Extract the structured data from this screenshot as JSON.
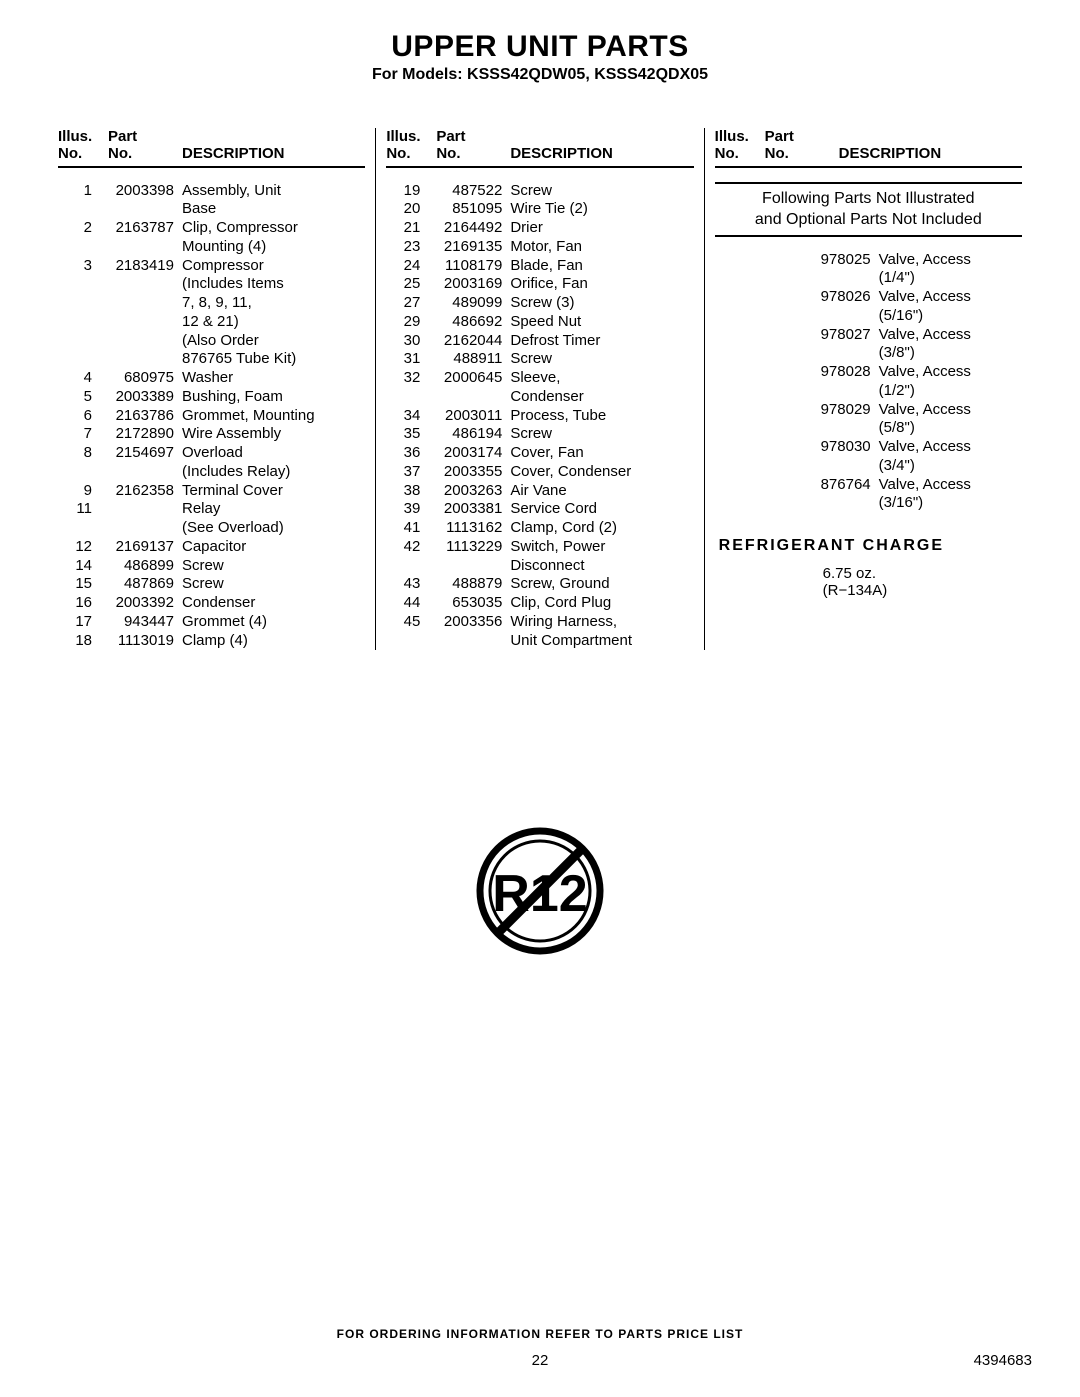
{
  "title": "UPPER UNIT PARTS",
  "subtitle": "For Models: KSSS42QDW05, KSSS42QDX05",
  "headers": {
    "illus_line1": "Illus.",
    "illus_line2": "No.",
    "part_line1": "Part",
    "part_line2": "No.",
    "desc": "DESCRIPTION"
  },
  "col1": [
    {
      "n": "1",
      "p": "2003398",
      "d": "Assembly, Unit"
    },
    {
      "n": "",
      "p": "",
      "d": "Base"
    },
    {
      "n": "2",
      "p": "2163787",
      "d": "Clip, Compressor"
    },
    {
      "n": "",
      "p": "",
      "d": "Mounting (4)"
    },
    {
      "n": "3",
      "p": "2183419",
      "d": "Compressor"
    },
    {
      "n": "",
      "p": "",
      "d": "(Includes Items"
    },
    {
      "n": "",
      "p": "",
      "d": "7, 8, 9, 11,"
    },
    {
      "n": "",
      "p": "",
      "d": "12 & 21)"
    },
    {
      "n": "",
      "p": "",
      "d": "(Also Order"
    },
    {
      "n": "",
      "p": "",
      "d": "876765 Tube Kit)"
    },
    {
      "n": "4",
      "p": "680975",
      "d": "Washer"
    },
    {
      "n": "5",
      "p": "2003389",
      "d": "Bushing, Foam"
    },
    {
      "n": "6",
      "p": "2163786",
      "d": "Grommet, Mounting"
    },
    {
      "n": "7",
      "p": "2172890",
      "d": "Wire Assembly"
    },
    {
      "n": "8",
      "p": "2154697",
      "d": "Overload"
    },
    {
      "n": "",
      "p": "",
      "d": "(Includes Relay)"
    },
    {
      "n": "9",
      "p": "2162358",
      "d": "Terminal Cover"
    },
    {
      "n": "11",
      "p": "",
      "d": "Relay"
    },
    {
      "n": "",
      "p": "",
      "d": "(See Overload)"
    },
    {
      "n": "12",
      "p": "2169137",
      "d": "Capacitor"
    },
    {
      "n": "14",
      "p": "486899",
      "d": "Screw"
    },
    {
      "n": "15",
      "p": "487869",
      "d": "Screw"
    },
    {
      "n": "16",
      "p": "2003392",
      "d": "Condenser"
    },
    {
      "n": "17",
      "p": "943447",
      "d": "Grommet (4)"
    },
    {
      "n": "18",
      "p": "1113019",
      "d": "Clamp (4)"
    }
  ],
  "col2": [
    {
      "n": "19",
      "p": "487522",
      "d": "Screw"
    },
    {
      "n": "20",
      "p": "851095",
      "d": "Wire Tie (2)"
    },
    {
      "n": "21",
      "p": "2164492",
      "d": "Drier"
    },
    {
      "n": "23",
      "p": "2169135",
      "d": "Motor, Fan"
    },
    {
      "n": "24",
      "p": "1108179",
      "d": "Blade, Fan"
    },
    {
      "n": "25",
      "p": "2003169",
      "d": "Orifice, Fan"
    },
    {
      "n": "27",
      "p": "489099",
      "d": "Screw (3)"
    },
    {
      "n": "29",
      "p": "486692",
      "d": "Speed Nut"
    },
    {
      "n": "30",
      "p": "2162044",
      "d": "Defrost Timer"
    },
    {
      "n": "31",
      "p": "488911",
      "d": "Screw"
    },
    {
      "n": "32",
      "p": "2000645",
      "d": "Sleeve,"
    },
    {
      "n": "",
      "p": "",
      "d": "Condenser"
    },
    {
      "n": "34",
      "p": "2003011",
      "d": "Process, Tube"
    },
    {
      "n": "35",
      "p": "486194",
      "d": "Screw"
    },
    {
      "n": "36",
      "p": "2003174",
      "d": "Cover, Fan"
    },
    {
      "n": "37",
      "p": "2003355",
      "d": "Cover, Condenser"
    },
    {
      "n": "38",
      "p": "2003263",
      "d": "Air Vane"
    },
    {
      "n": "39",
      "p": "2003381",
      "d": "Service Cord"
    },
    {
      "n": "41",
      "p": "1113162",
      "d": "Clamp, Cord (2)"
    },
    {
      "n": "42",
      "p": "1113229",
      "d": "Switch, Power"
    },
    {
      "n": "",
      "p": "",
      "d": "Disconnect"
    },
    {
      "n": "43",
      "p": "488879",
      "d": "Screw, Ground"
    },
    {
      "n": "44",
      "p": "653035",
      "d": "Clip, Cord Plug"
    },
    {
      "n": "45",
      "p": "2003356",
      "d": "Wiring Harness,"
    },
    {
      "n": "",
      "p": "",
      "d": "Unit Compartment"
    }
  ],
  "col3_header_line1": "Following Parts Not Illustrated",
  "col3_header_line2": "and Optional Parts Not Included",
  "col3": [
    {
      "n": "",
      "p": "978025",
      "d": "Valve, Access"
    },
    {
      "n": "",
      "p": "",
      "d": "(1/4\")"
    },
    {
      "n": "",
      "p": "978026",
      "d": "Valve, Access"
    },
    {
      "n": "",
      "p": "",
      "d": "(5/16\")"
    },
    {
      "n": "",
      "p": "978027",
      "d": "Valve, Access"
    },
    {
      "n": "",
      "p": "",
      "d": "(3/8\")"
    },
    {
      "n": "",
      "p": "978028",
      "d": "Valve, Access"
    },
    {
      "n": "",
      "p": "",
      "d": "(1/2\")"
    },
    {
      "n": "",
      "p": "978029",
      "d": "Valve, Access"
    },
    {
      "n": "",
      "p": "",
      "d": "(5/8\")"
    },
    {
      "n": "",
      "p": "978030",
      "d": "Valve, Access"
    },
    {
      "n": "",
      "p": "",
      "d": "(3/4\")"
    },
    {
      "n": "",
      "p": "876764",
      "d": "Valve, Access"
    },
    {
      "n": "",
      "p": "",
      "d": "(3/16\")"
    }
  ],
  "charge_title": "REFRIGERANT CHARGE",
  "charge_lines": [
    "6.75 oz.",
    "(R−134A)"
  ],
  "r12_label": "R12",
  "order_note": "FOR ORDERING INFORMATION REFER TO PARTS PRICE LIST",
  "page_number": "22",
  "doc_number": "4394683"
}
